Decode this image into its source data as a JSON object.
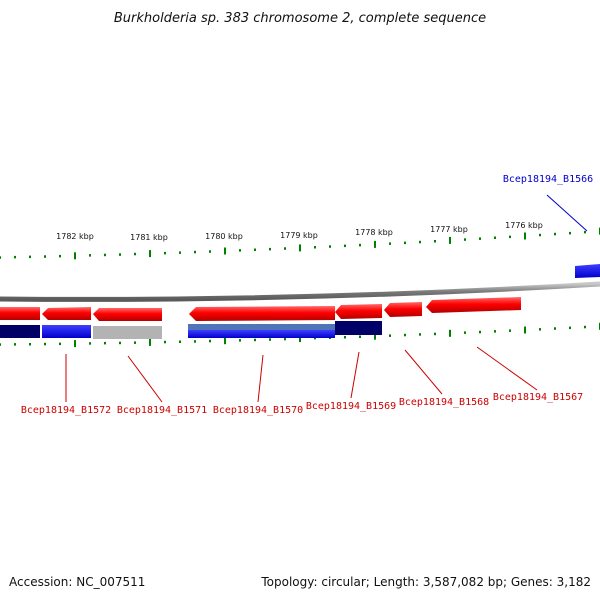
{
  "title": "Burkholderia sp. 383 chromosome 2, complete sequence",
  "footer": {
    "accession": "Accession: NC_007511",
    "stats": "Topology: circular; Length: 3,587,082 bp; Genes: 3,182"
  },
  "colors": {
    "forward_red": "#ff0000",
    "forward_red_dark": "#cc0000",
    "reverse_blue": "#0000ff",
    "reverse_navy": "#000066",
    "reverse_steel": "#4f74b8",
    "gray_gene": "#b3b3b3",
    "tick_green": "#008000",
    "label_red": "#cc0000",
    "label_blue": "#0000cc",
    "backbone_gray": "#8a8a8a"
  },
  "ticks": {
    "outer_labels": [
      "1782 kbp",
      "1781 kbp",
      "1780 kbp",
      "1779 kbp",
      "1778 kbp",
      "1777 kbp",
      "1776 kbp"
    ]
  },
  "genes": {
    "top_labels": [
      "Bcep18194_B1566"
    ],
    "bottom_labels": [
      "Bcep18194_B1572",
      "Bcep18194_B1571",
      "Bcep18194_B1570",
      "Bcep18194_B1569",
      "Bcep18194_B1568",
      "Bcep18194_B1567"
    ]
  }
}
